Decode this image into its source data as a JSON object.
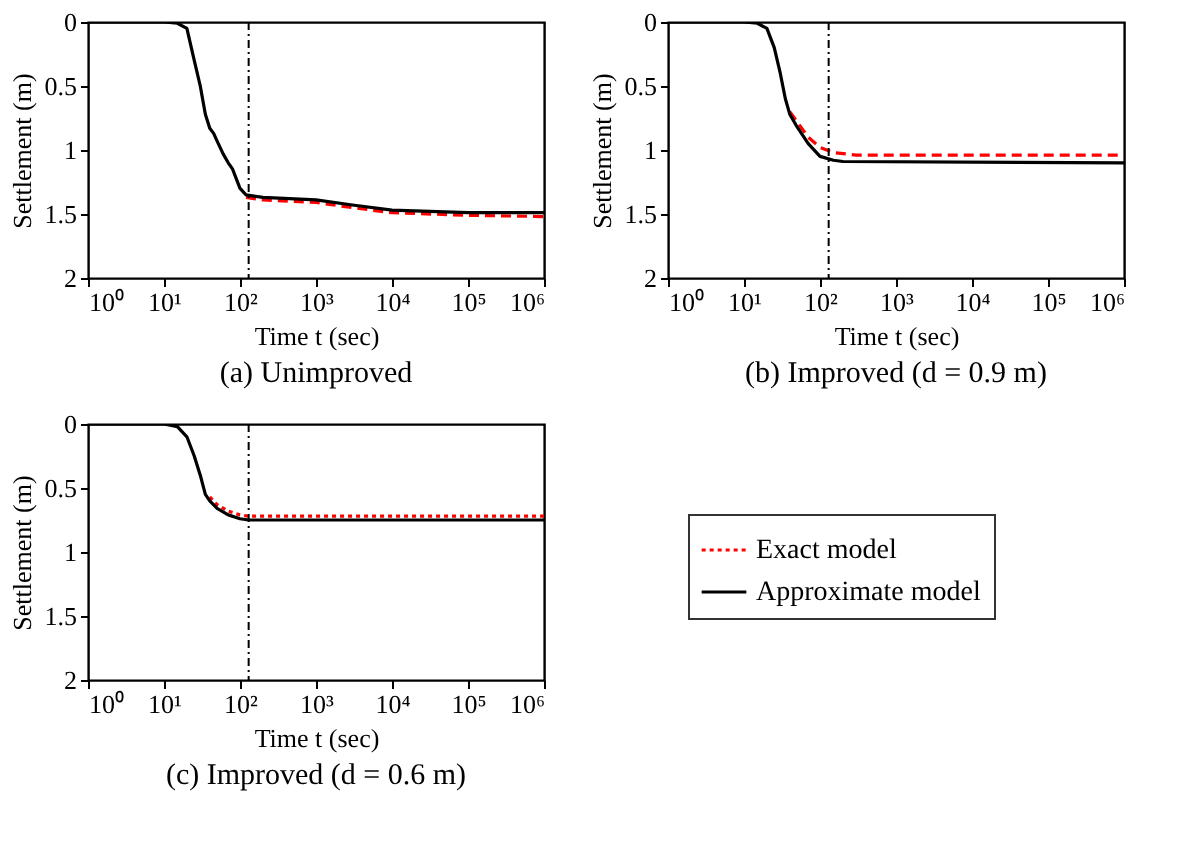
{
  "chart_data": [
    {
      "type": "line",
      "title": "(a) Unimproved",
      "xlabel": "Time t (sec)",
      "ylabel": "Settlement (m)",
      "log": "x",
      "legend": false,
      "grid": false,
      "xlim": [
        1,
        1000000
      ],
      "xticks": [
        {
          "value": 1,
          "label": "10⁰"
        },
        {
          "value": 10,
          "label": "10¹"
        },
        {
          "value": 100,
          "label": "10²"
        },
        {
          "value": 1000,
          "label": "10³"
        },
        {
          "value": 10000,
          "label": "10⁴"
        },
        {
          "value": 100000,
          "label": "10⁵"
        },
        {
          "value": 1000000,
          "label": "10⁶"
        }
      ],
      "ylim": [
        2,
        0
      ],
      "yticks": [
        0,
        0.5,
        1,
        1.5,
        2
      ],
      "ref_lines": [
        {
          "axis": "x",
          "value": 130
        }
      ],
      "series": [
        {
          "color": "#ff0000",
          "line_style": "dashed",
          "x": [
            120,
            200,
            1000,
            3000,
            10000,
            100000,
            1000000
          ],
          "values": [
            1.37,
            1.39,
            1.41,
            1.45,
            1.49,
            1.51,
            1.52
          ]
        },
        {
          "color": "#000000",
          "line_style": "solid",
          "x": [
            1,
            10,
            15,
            20,
            25,
            30,
            35,
            40,
            45,
            50,
            60,
            70,
            80,
            90,
            100,
            120,
            200,
            1000,
            3000,
            10000,
            100000,
            1000000
          ],
          "values": [
            0,
            0,
            0.01,
            0.05,
            0.3,
            0.5,
            0.72,
            0.83,
            0.87,
            0.93,
            1.03,
            1.1,
            1.15,
            1.23,
            1.3,
            1.35,
            1.37,
            1.39,
            1.43,
            1.47,
            1.49,
            1.49
          ]
        }
      ]
    },
    {
      "type": "line",
      "title": "(b) Improved (d = 0.9 m)",
      "xlabel": "Time t (sec)",
      "ylabel": "Settlement (m)",
      "log": "x",
      "legend": false,
      "grid": false,
      "xlim": [
        1,
        1000000
      ],
      "xticks": [
        {
          "value": 1,
          "label": "10⁰"
        },
        {
          "value": 10,
          "label": "10¹"
        },
        {
          "value": 100,
          "label": "10²"
        },
        {
          "value": 1000,
          "label": "10³"
        },
        {
          "value": 10000,
          "label": "10⁴"
        },
        {
          "value": 100000,
          "label": "10⁵"
        },
        {
          "value": 1000000,
          "label": "10⁶"
        }
      ],
      "ylim": [
        2,
        0
      ],
      "yticks": [
        0,
        0.5,
        1,
        1.5,
        2
      ],
      "ref_lines": [
        {
          "axis": "x",
          "value": 130
        }
      ],
      "series": [
        {
          "color": "#ff0000",
          "line_style": "dashed",
          "x": [
            40,
            50,
            70,
            100,
            150,
            300,
            1000000
          ],
          "values": [
            0.7,
            0.78,
            0.9,
            0.98,
            1.02,
            1.04,
            1.04
          ]
        },
        {
          "color": "#000000",
          "line_style": "solid",
          "x": [
            1,
            10,
            15,
            20,
            25,
            30,
            35,
            40,
            50,
            70,
            100,
            150,
            200,
            1000000
          ],
          "values": [
            0,
            0,
            0.01,
            0.05,
            0.2,
            0.4,
            0.6,
            0.72,
            0.82,
            0.95,
            1.05,
            1.08,
            1.09,
            1.1
          ]
        }
      ]
    },
    {
      "type": "line",
      "title": "(c) Improved (d = 0.6 m)",
      "xlabel": "Time t (sec)",
      "ylabel": "Settlement (m)",
      "log": "x",
      "legend": "right",
      "grid": false,
      "xlim": [
        1,
        1000000
      ],
      "xticks": [
        {
          "value": 1,
          "label": "10⁰"
        },
        {
          "value": 10,
          "label": "10¹"
        },
        {
          "value": 100,
          "label": "10²"
        },
        {
          "value": 1000,
          "label": "10³"
        },
        {
          "value": 10000,
          "label": "10⁴"
        },
        {
          "value": 100000,
          "label": "10⁵"
        },
        {
          "value": 1000000,
          "label": "10⁶"
        }
      ],
      "ylim": [
        2,
        0
      ],
      "yticks": [
        0,
        0.5,
        1,
        1.5,
        2
      ],
      "ref_lines": [
        {
          "axis": "x",
          "value": 130
        }
      ],
      "series": [
        {
          "name": "Exact model",
          "color": "#ff0000",
          "line_style": "dotted",
          "x": [
            40,
            50,
            70,
            100,
            130,
            1000000
          ],
          "values": [
            0.57,
            0.63,
            0.68,
            0.71,
            0.72,
            0.72
          ]
        },
        {
          "name": "Approximate model",
          "color": "#000000",
          "line_style": "solid",
          "x": [
            1,
            10,
            15,
            20,
            25,
            30,
            35,
            40,
            50,
            70,
            100,
            130,
            1000000
          ],
          "values": [
            0,
            0,
            0.02,
            0.1,
            0.25,
            0.4,
            0.55,
            0.6,
            0.66,
            0.71,
            0.74,
            0.75,
            0.75
          ]
        }
      ]
    }
  ]
}
